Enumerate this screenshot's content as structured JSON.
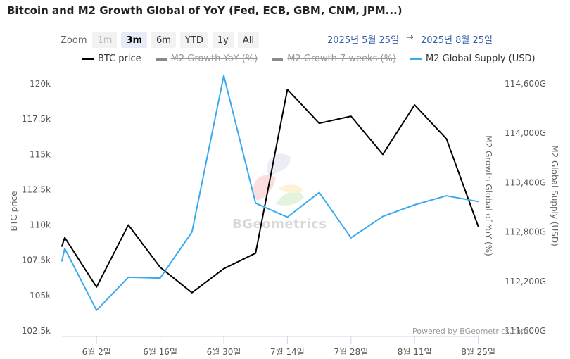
{
  "title": "Bitcoin and M2 Growth Global of YoY (Fed, ECB, GBM, CNM, JPM...)",
  "zoom": {
    "label": "Zoom",
    "buttons": [
      {
        "label": "1m",
        "state": "disabled"
      },
      {
        "label": "3m",
        "state": "active"
      },
      {
        "label": "6m",
        "state": "normal"
      },
      {
        "label": "YTD",
        "state": "normal"
      },
      {
        "label": "1y",
        "state": "normal"
      },
      {
        "label": "All",
        "state": "normal"
      }
    ]
  },
  "range": {
    "from": "2025년 5월 25일",
    "arrow": "→",
    "to": "2025년 8월 25일"
  },
  "legend": [
    {
      "label": "BTC price",
      "color": "#000000",
      "hidden": false
    },
    {
      "label": "M2 Growth YoY (%)",
      "color": "#7a7a7a",
      "hidden": true
    },
    {
      "label": "M2 Growth 7 weeks (%)",
      "color": "#7a7a7a",
      "hidden": true
    },
    {
      "label": "M2 Global Supply (USD)",
      "color": "#3aaaf0",
      "hidden": false
    }
  ],
  "watermark": "BGeometrics",
  "credit": "Powered by BGeometrics.com",
  "chart_data": {
    "type": "line",
    "x_labels": [
      "6월 2일",
      "6월 16일",
      "6월 30일",
      "7월 14일",
      "7월 28일",
      "8월 11일",
      "8월 25일"
    ],
    "x": [
      "5/25",
      "5/26",
      "6/2",
      "6/9",
      "6/16",
      "6/23",
      "6/30",
      "7/7",
      "7/14",
      "7/21",
      "7/28",
      "8/4",
      "8/11",
      "8/18",
      "8/25"
    ],
    "series": [
      {
        "name": "BTC price",
        "axis": "left",
        "color": "#000000",
        "values": [
          108500,
          109100,
          105600,
          110000,
          107000,
          105200,
          106900,
          108000,
          119600,
          117200,
          117700,
          115000,
          118500,
          116100,
          109900
        ]
      },
      {
        "name": "M2 Global Supply (USD)",
        "axis": "right",
        "color": "#3aaaf0",
        "values": [
          112450,
          112600,
          111850,
          112250,
          112240,
          112800,
          114700,
          113150,
          112980,
          113280,
          112730,
          112990,
          113130,
          113240,
          113170
        ]
      }
    ],
    "y_left": {
      "title": "BTC price",
      "min": 102500,
      "max": 120000,
      "ticks": [
        "120k",
        "117.5k",
        "115k",
        "112.5k",
        "110k",
        "107.5k",
        "105k",
        "102.5k"
      ]
    },
    "y_right": {
      "title": "M2 Global Supply (USD)",
      "min": 111600,
      "max": 114600,
      "ticks": [
        "114,600G",
        "114,000G",
        "113,400G",
        "112,800G",
        "112,200G",
        "111,600G"
      ]
    },
    "y_right2": {
      "title": "M2 Growth Global of YoY (%)"
    }
  }
}
